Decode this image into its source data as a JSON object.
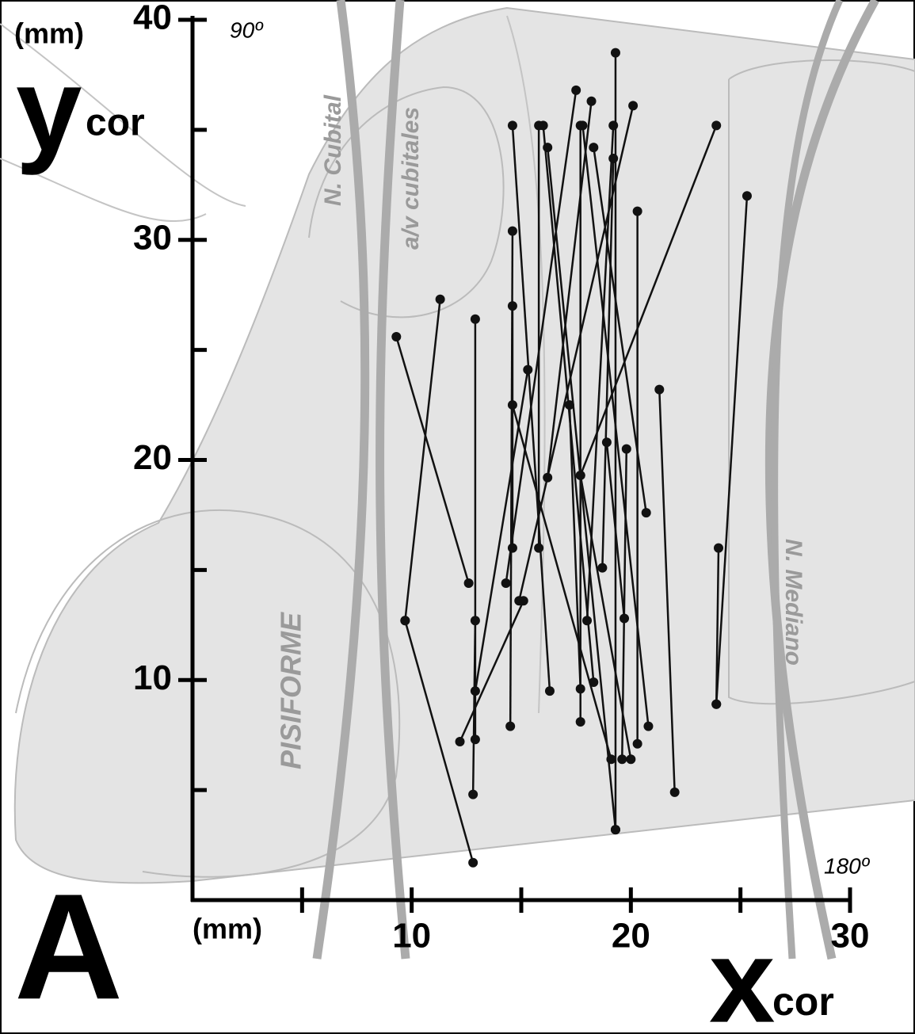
{
  "chart_data": {
    "type": "line",
    "panel_label": "A",
    "y_unit": "(mm)",
    "x_unit": "(mm)",
    "y_label": {
      "main": "y",
      "sub": "cor"
    },
    "x_label": {
      "main": "x",
      "sub": "cor"
    },
    "angle_top": "90º",
    "angle_right": "180º",
    "annotations": [
      "N. Cubital",
      "a/v cubitales",
      "N. Mediano",
      "PISIFORME"
    ],
    "xlim": [
      0,
      30
    ],
    "ylim": [
      0,
      40
    ],
    "xticks": [
      10,
      20,
      30
    ],
    "yticks": [
      10,
      20,
      30,
      40
    ],
    "xminor_ticks": [
      5,
      15,
      25
    ],
    "yminor_ticks": [
      5,
      15,
      25,
      35
    ],
    "color": "#111111",
    "segments": [
      {
        "x": [
          9.3,
          12.6
        ],
        "y": [
          25.6,
          14.4
        ]
      },
      {
        "x": [
          9.7,
          12.8
        ],
        "y": [
          12.7,
          1.7
        ]
      },
      {
        "x": [
          11.3,
          9.7
        ],
        "y": [
          27.3,
          12.7
        ]
      },
      {
        "x": [
          12.9,
          12.9
        ],
        "y": [
          26.4,
          7.3
        ]
      },
      {
        "x": [
          12.9,
          12.8
        ],
        "y": [
          12.7,
          4.8
        ]
      },
      {
        "x": [
          12.2,
          15.1
        ],
        "y": [
          7.2,
          13.6
        ]
      },
      {
        "x": [
          14.6,
          16.3
        ],
        "y": [
          35.2,
          9.5
        ]
      },
      {
        "x": [
          14.6,
          14.5
        ],
        "y": [
          30.4,
          7.9
        ]
      },
      {
        "x": [
          15.3,
          12.9
        ],
        "y": [
          24.1,
          9.5
        ]
      },
      {
        "x": [
          14.3,
          17.5
        ],
        "y": [
          14.4,
          36.8
        ]
      },
      {
        "x": [
          15.8,
          15.8
        ],
        "y": [
          35.2,
          16.0
        ]
      },
      {
        "x": [
          16.2,
          19.3
        ],
        "y": [
          34.2,
          3.2
        ]
      },
      {
        "x": [
          16.0,
          18.3
        ],
        "y": [
          35.2,
          9.9
        ]
      },
      {
        "x": [
          17.7,
          17.7
        ],
        "y": [
          35.2,
          8.1
        ]
      },
      {
        "x": [
          18.2,
          16.2
        ],
        "y": [
          36.3,
          19.2
        ]
      },
      {
        "x": [
          19.3,
          19.3
        ],
        "y": [
          38.5,
          3.2
        ]
      },
      {
        "x": [
          20.1,
          14.9
        ],
        "y": [
          36.1,
          13.6
        ]
      },
      {
        "x": [
          19.2,
          18.0
        ],
        "y": [
          35.2,
          12.7
        ]
      },
      {
        "x": [
          20.3,
          20.3
        ],
        "y": [
          31.3,
          7.1
        ]
      },
      {
        "x": [
          23.9,
          17.7
        ],
        "y": [
          35.2,
          19.3
        ]
      },
      {
        "x": [
          25.3,
          23.9
        ],
        "y": [
          32.0,
          8.9
        ]
      },
      {
        "x": [
          24.0,
          23.9
        ],
        "y": [
          16.0,
          8.9
        ]
      },
      {
        "x": [
          21.3,
          22.0
        ],
        "y": [
          23.2,
          4.9
        ]
      },
      {
        "x": [
          18.3,
          20.7
        ],
        "y": [
          34.2,
          17.6
        ]
      },
      {
        "x": [
          17.8,
          20.8
        ],
        "y": [
          35.2,
          7.9
        ]
      },
      {
        "x": [
          19.8,
          19.6
        ],
        "y": [
          20.5,
          6.4
        ]
      },
      {
        "x": [
          18.7,
          19.2
        ],
        "y": [
          15.1,
          33.7
        ]
      },
      {
        "x": [
          17.7,
          20.0
        ],
        "y": [
          19.3,
          6.4
        ]
      },
      {
        "x": [
          18.9,
          19.7
        ],
        "y": [
          20.8,
          12.8
        ]
      },
      {
        "x": [
          17.2,
          17.7
        ],
        "y": [
          22.5,
          9.6
        ]
      },
      {
        "x": [
          14.6,
          19.1
        ],
        "y": [
          22.5,
          6.4
        ]
      },
      {
        "x": [
          14.6,
          14.6
        ],
        "y": [
          27.0,
          16.0
        ]
      }
    ]
  }
}
